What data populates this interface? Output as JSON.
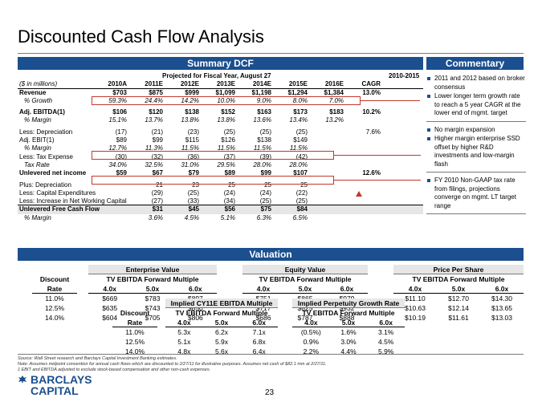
{
  "title": "Discounted Cash Flow Analysis",
  "summary": {
    "band": "Summary DCF",
    "projected_header": "Projected for Fiscal Year, August 27",
    "cagr_period": "2010-2015",
    "unit_label": "($ in millions)",
    "columns": [
      "2010A",
      "2011E",
      "2012E",
      "2013E",
      "2014E",
      "2015E",
      "2016E",
      "CAGR"
    ],
    "rows": [
      {
        "label": "Revenue",
        "bold": true,
        "values": [
          "$703",
          "$875",
          "$999",
          "$1,099",
          "$1,198",
          "$1,294",
          "$1,384",
          "13.0%"
        ]
      },
      {
        "label": "% Growth",
        "italic": true,
        "values": [
          "59.3%",
          "24.4%",
          "14.2%",
          "10.0%",
          "9.0%",
          "8.0%",
          "7.0%",
          ""
        ]
      },
      {
        "label": "Adj. EBITDA(1)",
        "bold": true,
        "values": [
          "$106",
          "$120",
          "$138",
          "$152",
          "$163",
          "$173",
          "$183",
          "10.2%"
        ]
      },
      {
        "label": "% Margin",
        "italic": true,
        "values": [
          "15.1%",
          "13.7%",
          "13.8%",
          "13.8%",
          "13.6%",
          "13.4%",
          "13.2%",
          ""
        ]
      },
      {
        "label": "Less: Depreciation",
        "values": [
          "(17)",
          "(21)",
          "(23)",
          "(25)",
          "(25)",
          "(25)",
          "",
          "7.6%"
        ]
      },
      {
        "label": "Adj. EBIT(1)",
        "values": [
          "$89",
          "$99",
          "$115",
          "$126",
          "$138",
          "$149",
          "",
          ""
        ]
      },
      {
        "label": "% Margin",
        "italic": true,
        "values": [
          "12.7%",
          "11.3%",
          "11.5%",
          "11.5%",
          "11.5%",
          "11.5%",
          "",
          ""
        ]
      },
      {
        "label": "Less: Tax Expense",
        "values": [
          "(30)",
          "(32)",
          "(36)",
          "(37)",
          "(39)",
          "(42)",
          "",
          ""
        ]
      },
      {
        "label": "Tax Rate",
        "italic": true,
        "values": [
          "34.0%",
          "32.5%",
          "31.0%",
          "29.5%",
          "28.0%",
          "28.0%",
          "",
          ""
        ]
      },
      {
        "label": "Unlevered net income",
        "bold": true,
        "values": [
          "$59",
          "$67",
          "$79",
          "$89",
          "$99",
          "$107",
          "",
          "12.6%"
        ]
      },
      {
        "label": "Plus: Depreciation",
        "values": [
          "",
          "21",
          "23",
          "25",
          "25",
          "25",
          "",
          ""
        ]
      },
      {
        "label": "Less: Capital Expenditures",
        "values": [
          "",
          "(29)",
          "(25)",
          "(24)",
          "(24)",
          "(22)",
          "",
          ""
        ]
      },
      {
        "label": "Less: Increase in Net Working Capital",
        "values": [
          "",
          "(27)",
          "(33)",
          "(34)",
          "(25)",
          "(25)",
          "",
          ""
        ]
      },
      {
        "label": "Unlevered Free Cash Flow",
        "bold": true,
        "values": [
          "",
          "$31",
          "$45",
          "$56",
          "$75",
          "$84",
          "",
          ""
        ]
      },
      {
        "label": "% Margin",
        "italic": true,
        "values": [
          "",
          "3.6%",
          "4.5%",
          "5.1%",
          "6.3%",
          "6.5%",
          "",
          ""
        ]
      }
    ]
  },
  "commentary": {
    "band": "Commentary",
    "sections": [
      [
        "2011 and 2012 based on broker consensus",
        "Lower longer term growth rate to reach a 5 year CAGR at the lower end of mgmt. target"
      ],
      [
        "No margin expansion",
        "Higher margin enterprise SSD offset by higher R&D investments and low-margin flash"
      ],
      [
        "FY 2010 Non-GAAP tax rate from filings, projections converge on mgmt. LT target range"
      ]
    ]
  },
  "valuation": {
    "band": "Valuation",
    "discount_header": [
      "Discount",
      "Rate"
    ],
    "rates": [
      "11.0%",
      "12.5%",
      "14.0%"
    ],
    "subheader": "TV EBITDA Forward Multiple",
    "multiples": [
      "4.0x",
      "5.0x",
      "6.0x"
    ],
    "enterprise_value": {
      "title": "Enterprise Value",
      "rows": [
        [
          "$669",
          "$783",
          "$897"
        ],
        [
          "$635",
          "$743",
          "$850"
        ],
        [
          "$604",
          "$705",
          "$806"
        ]
      ]
    },
    "equity_value": {
      "title": "Equity Value",
      "rows": [
        [
          "$751",
          "$865",
          "$979"
        ],
        [
          "$717",
          "$825",
          "$932"
        ],
        [
          "$686",
          "$787",
          "$888"
        ]
      ]
    },
    "price_per_share": {
      "title": "Price Per Share",
      "rows": [
        [
          "$11.10",
          "$12.70",
          "$14.30"
        ],
        [
          "$10.63",
          "$12.14",
          "$13.65"
        ],
        [
          "$10.19",
          "$11.61",
          "$13.03"
        ]
      ]
    },
    "implied_ebitda": {
      "title": "Implied CY11E EBITDA Multiple",
      "rows": [
        [
          "5.3x",
          "6.2x",
          "7.1x"
        ],
        [
          "5.1x",
          "5.9x",
          "6.8x"
        ],
        [
          "4.8x",
          "5.6x",
          "6.4x"
        ]
      ]
    },
    "implied_growth": {
      "title": "Implied Perpetuity Growth Rate",
      "rows": [
        [
          "(0.5%)",
          "1.6%",
          "3.1%"
        ],
        [
          "0.9%",
          "3.0%",
          "4.5%"
        ],
        [
          "2.2%",
          "4.4%",
          "5.9%"
        ]
      ]
    }
  },
  "footnotes": [
    "Source: Wall Street research and Barclays Capital Investment Banking estimates.",
    "Note: Assumes midpoint convention for annual cash flows which are discounted to 2/27/11 for illustrative purposes. Assumes net cash of $82.1 mm at 2/27/11.",
    "1   EBIT and EBITDA adjusted to exclude stock-based compensation and other non-cash expenses."
  ],
  "logo": {
    "line1": "BARCLAYS",
    "line2": "CAPITAL"
  },
  "page_number": "23",
  "colors": {
    "band": "#1b4f8f",
    "highlight_box": "#c0392b",
    "bullet": "#1b4f8f"
  }
}
